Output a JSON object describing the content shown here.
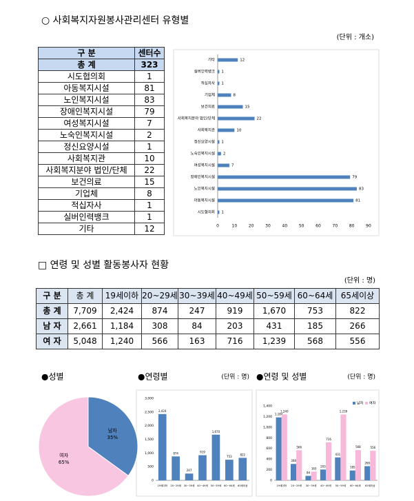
{
  "section1": {
    "title": "○ 사회복지자원봉사관리센터 유형별",
    "unit": "(단위 : 개소)",
    "table": {
      "header": [
        "구 분",
        "센터수"
      ],
      "rows": [
        [
          "총 계",
          "323"
        ],
        [
          "시도협의회",
          "1"
        ],
        [
          "아동복지시설",
          "81"
        ],
        [
          "노인복지시설",
          "83"
        ],
        [
          "장애인복지시설",
          "79"
        ],
        [
          "여성복지시설",
          "7"
        ],
        [
          "노숙인복지시설",
          "2"
        ],
        [
          "정신요양시설",
          "1"
        ],
        [
          "사회복지관",
          "10"
        ],
        [
          "사회복지분야 법인/단체",
          "22"
        ],
        [
          "보건의료",
          "15"
        ],
        [
          "기업체",
          "8"
        ],
        [
          "적십자사",
          "1"
        ],
        [
          "실버인력뱅크",
          "1"
        ],
        [
          "기타",
          "12"
        ]
      ]
    }
  },
  "section2": {
    "title": "□ 연령 및 성별 활동봉사자 현황",
    "unit": "(단위 : 명)",
    "table": {
      "header": [
        "구 분",
        "총 계",
        "19세이하",
        "20~29세",
        "30~39세",
        "40~49세",
        "50~59세",
        "60~64세",
        "65세이상"
      ],
      "rows": [
        [
          "총 계",
          "7,709",
          "2,424",
          "874",
          "247",
          "919",
          "1,670",
          "753",
          "822"
        ],
        [
          "남 자",
          "2,661",
          "1,184",
          "308",
          "84",
          "203",
          "431",
          "185",
          "266"
        ],
        [
          "여 자",
          "5,048",
          "1,240",
          "566",
          "163",
          "716",
          "1,239",
          "568",
          "556"
        ]
      ]
    }
  },
  "chart_data": [
    {
      "type": "barh",
      "categories": [
        "기타",
        "실버인력뱅크",
        "적십자사",
        "기업체",
        "보건의료",
        "사회복지분야 법인/단체",
        "사회복지관",
        "정신요양시설",
        "노숙인복지시설",
        "여성복지시설",
        "장애인복지시설",
        "노인복지시설",
        "아동복지시설",
        "시도협의회"
      ],
      "values": [
        12,
        1,
        1,
        8,
        15,
        22,
        10,
        1,
        2,
        7,
        79,
        83,
        81,
        1
      ],
      "color": "#4f81bd",
      "xlim": [
        0,
        90
      ],
      "xticks": [
        0,
        10,
        20,
        30,
        40,
        50,
        60,
        70,
        80,
        90
      ],
      "grid": false
    },
    {
      "type": "pie",
      "title": "●성별",
      "categories": [
        "남자",
        "여자"
      ],
      "values": [
        35,
        65
      ],
      "value_labels": [
        "35%",
        "65%"
      ],
      "colors": [
        "#4f81bd",
        "#f9c6e2"
      ]
    },
    {
      "type": "bar",
      "title": "●연령별",
      "unit": "(단위 : 명)",
      "categories": [
        "19세이하",
        "20~29세",
        "30~39세",
        "40~49세",
        "50~59세",
        "60~64세",
        "65세이상"
      ],
      "values": [
        2424,
        874,
        247,
        919,
        1670,
        753,
        822
      ],
      "value_labels": [
        "2,424",
        "874",
        "247",
        "919",
        "1,670",
        "753",
        "822"
      ],
      "color": "#4f81bd",
      "ylim": [
        0,
        3000
      ],
      "yticks": [
        0,
        500,
        {
          "value": 1000,
          "label": "1,000"
        },
        {
          "value": 1500,
          "label": "1,500"
        },
        {
          "value": 2000,
          "label": "2,000"
        },
        {
          "value": 2500,
          "label": "2,500"
        },
        {
          "value": 3000,
          "label": "3,000"
        }
      ],
      "grid": false
    },
    {
      "type": "bar",
      "title": "●연령 및 성별",
      "unit": "(단위 : 명)",
      "categories": [
        "19세이하",
        "20~29세",
        "30~39세",
        "40~49세",
        "50~59세",
        "60~64세",
        "65세이상"
      ],
      "series": [
        {
          "name": "남자",
          "color": "#4f81bd",
          "values": [
            1184,
            308,
            84,
            203,
            431,
            185,
            266
          ],
          "value_labels": [
            "1,184",
            "308",
            "84",
            "203",
            "431",
            "185",
            "266"
          ]
        },
        {
          "name": "여자",
          "color": "#f7b8d9",
          "values": [
            1240,
            566,
            163,
            716,
            1239,
            568,
            556
          ],
          "value_labels": [
            "1,240",
            "566",
            "163",
            "716",
            "1,239",
            "568",
            "556"
          ]
        }
      ],
      "ylim": [
        0,
        1400
      ],
      "yticks": [
        0,
        200,
        400,
        600,
        800,
        {
          "value": 1000,
          "label": "1,000"
        },
        {
          "value": 1200,
          "label": "1,200"
        },
        {
          "value": 1400,
          "label": "1,400"
        }
      ],
      "grid": false,
      "legend": "top-right"
    }
  ]
}
